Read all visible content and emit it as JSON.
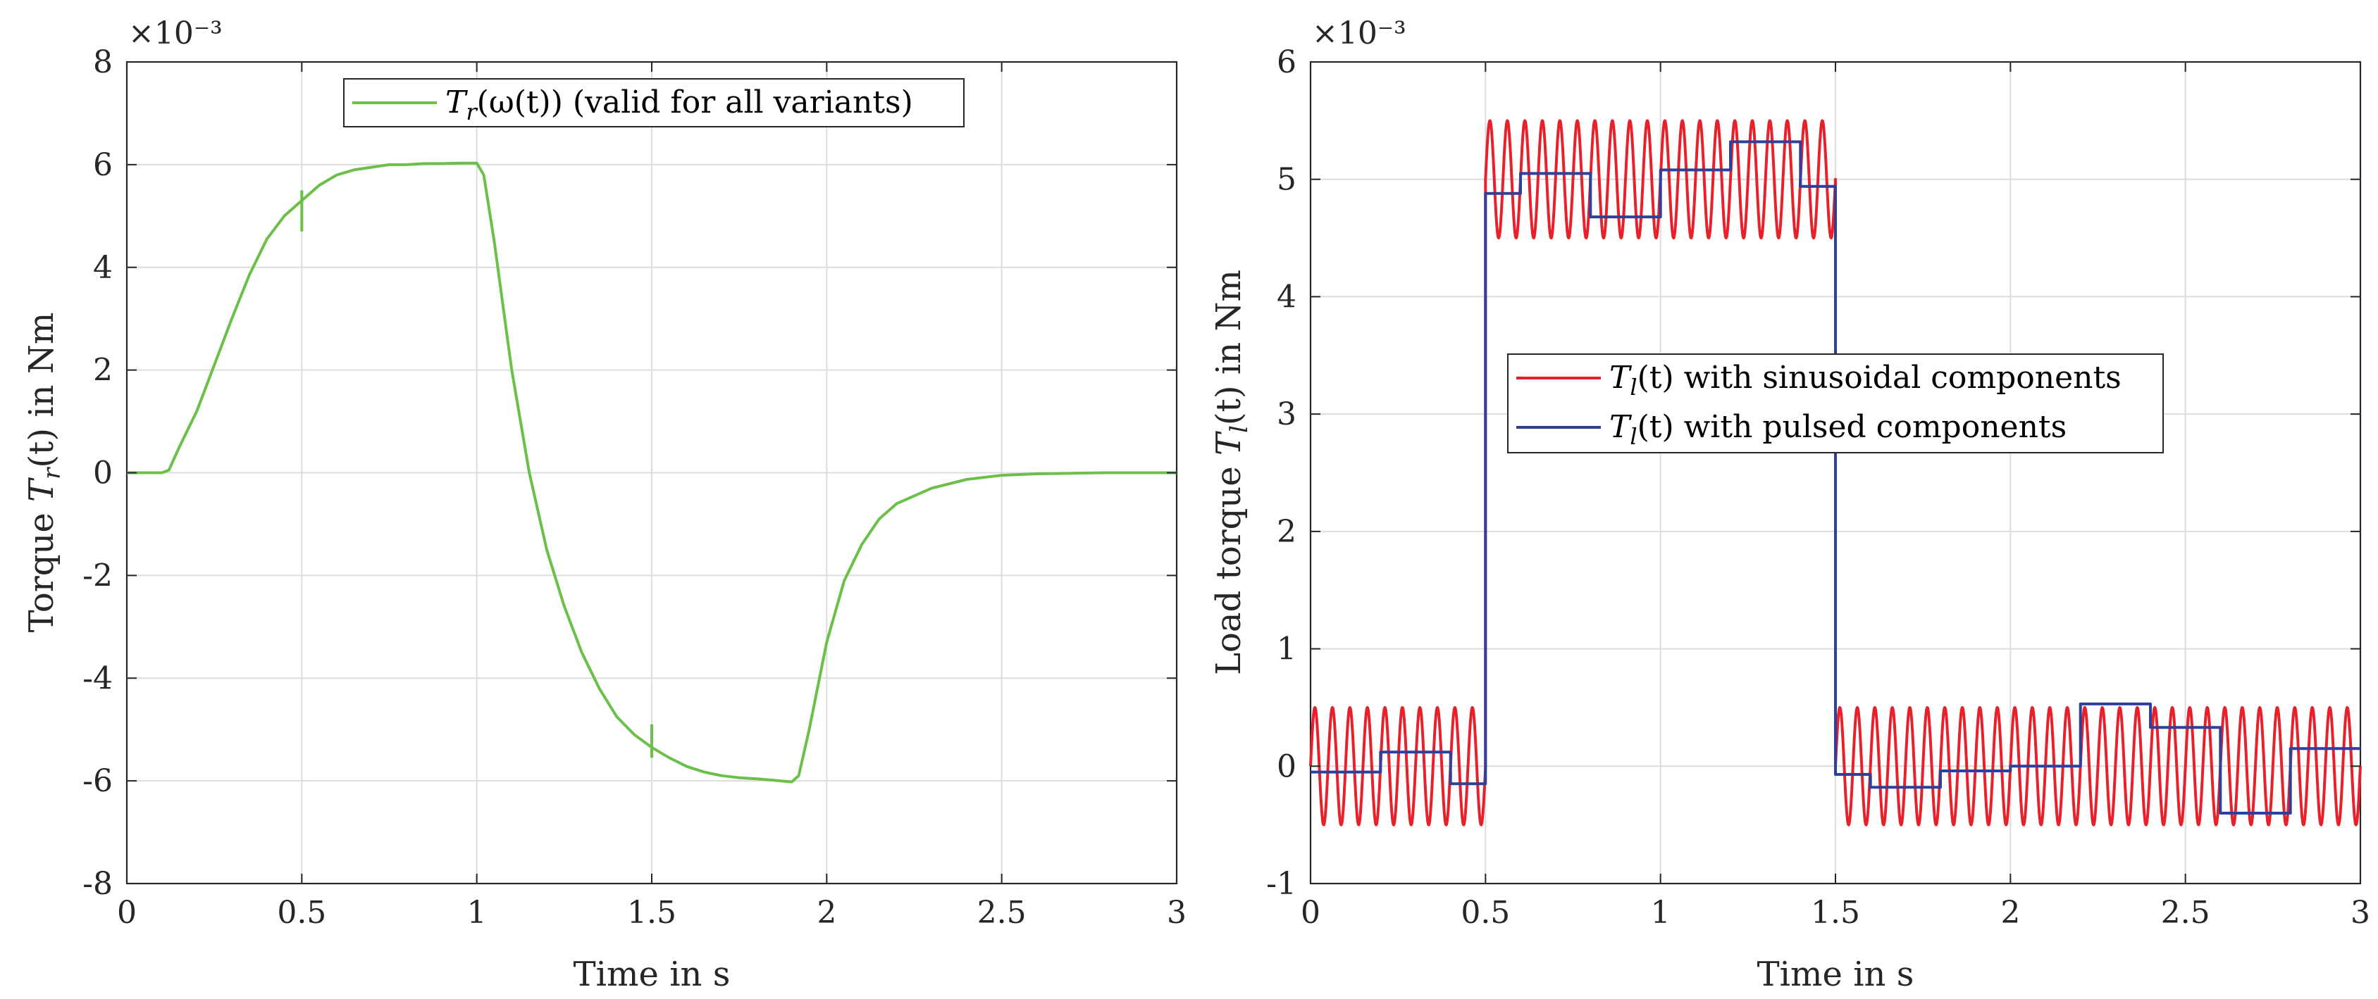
{
  "chart_data": [
    {
      "type": "line",
      "title": "",
      "xlabel": "Time in s",
      "ylabel": "Torque T_r(t) in Nm",
      "ylabel_parts": {
        "pre": "Torque ",
        "sym": "T",
        "sub": "r",
        "post": "(t) in Nm"
      },
      "exponent_label": "×10⁻³",
      "xlim": [
        0,
        3
      ],
      "ylim": [
        -8,
        8
      ],
      "xticks": [
        0,
        0.5,
        1,
        1.5,
        2,
        2.5,
        3
      ],
      "xtick_labels": [
        "0",
        "0.5",
        "1",
        "1.5",
        "2",
        "2.5",
        "3"
      ],
      "yticks": [
        -8,
        -6,
        -4,
        -2,
        0,
        2,
        4,
        6,
        8
      ],
      "ytick_labels": [
        "-8",
        "-6",
        "-4",
        "-2",
        "0",
        "2",
        "4",
        "6",
        "8"
      ],
      "grid": true,
      "legend_position": "top-center",
      "series": [
        {
          "name": "T_r(ω(t)) (valid for all variants)",
          "legend_parts": {
            "sym": "T",
            "sub": "r",
            "post": "(ω(t)) (valid for all variants)"
          },
          "color": "#6cc04a",
          "x": [
            0,
            0.1,
            0.12,
            0.15,
            0.2,
            0.25,
            0.3,
            0.35,
            0.4,
            0.45,
            0.5,
            0.55,
            0.6,
            0.65,
            0.7,
            0.75,
            0.8,
            0.85,
            0.9,
            0.95,
            1.0,
            1.02,
            1.05,
            1.1,
            1.15,
            1.2,
            1.25,
            1.3,
            1.35,
            1.4,
            1.45,
            1.5,
            1.55,
            1.6,
            1.65,
            1.7,
            1.75,
            1.8,
            1.85,
            1.9,
            1.92,
            1.95,
            2.0,
            2.05,
            2.1,
            2.15,
            2.2,
            2.3,
            2.4,
            2.5,
            2.6,
            2.7,
            2.8,
            3.0
          ],
          "y": [
            0,
            0,
            0.05,
            0.5,
            1.2,
            2.1,
            3.0,
            3.85,
            4.55,
            5.0,
            5.3,
            5.6,
            5.8,
            5.9,
            5.95,
            6.0,
            6.0,
            6.02,
            6.02,
            6.03,
            6.03,
            5.8,
            4.5,
            2.0,
            0.0,
            -1.5,
            -2.6,
            -3.5,
            -4.2,
            -4.75,
            -5.1,
            -5.35,
            -5.55,
            -5.72,
            -5.83,
            -5.9,
            -5.94,
            -5.96,
            -5.99,
            -6.02,
            -5.9,
            -5.0,
            -3.3,
            -2.1,
            -1.4,
            -0.9,
            -0.6,
            -0.3,
            -0.13,
            -0.05,
            -0.02,
            -0.01,
            0,
            0
          ]
        }
      ],
      "annotations": [
        {
          "type": "tick",
          "x": 0.5,
          "y_low": 4.7,
          "y_high": 5.5
        },
        {
          "type": "tick",
          "x": 1.5,
          "y_low": -5.55,
          "y_high": -4.9
        }
      ]
    },
    {
      "type": "line",
      "title": "",
      "xlabel": "Time in s",
      "ylabel": "Load torque T_l(t) in Nm",
      "ylabel_parts": {
        "pre": "Load torque ",
        "sym": "T",
        "sub": "l",
        "post": "(t) in Nm"
      },
      "exponent_label": "×10⁻³",
      "xlim": [
        0,
        3
      ],
      "ylim": [
        -1,
        6
      ],
      "xticks": [
        0,
        0.5,
        1,
        1.5,
        2,
        2.5,
        3
      ],
      "xtick_labels": [
        "0",
        "0.5",
        "1",
        "1.5",
        "2",
        "2.5",
        "3"
      ],
      "yticks": [
        -1,
        0,
        1,
        2,
        3,
        4,
        5,
        6
      ],
      "ytick_labels": [
        "-1",
        "0",
        "1",
        "2",
        "3",
        "4",
        "5",
        "6"
      ],
      "grid": true,
      "legend_position": "center",
      "series": [
        {
          "name": "T_l(t) with sinusoidal components",
          "legend_parts": {
            "sym": "T",
            "sub": "l",
            "post": "(t) with sinusoidal components"
          },
          "color": "#e8202a",
          "kind": "sinusoid",
          "frequency_hz": 20,
          "amplitude": 0.5,
          "segments": [
            {
              "t0": 0,
              "t1": 0.5,
              "offset": 0
            },
            {
              "t0": 0.5,
              "t1": 1.5,
              "offset": 5
            },
            {
              "t0": 1.5,
              "t1": 3,
              "offset": 0
            }
          ]
        },
        {
          "name": "T_l(t) with pulsed components",
          "legend_parts": {
            "sym": "T",
            "sub": "l",
            "post": "(t) with pulsed components"
          },
          "color": "#2e3f9c",
          "kind": "step",
          "x": [
            0,
            0.2,
            0.4,
            0.5,
            0.6,
            0.8,
            1.0,
            1.2,
            1.4,
            1.5,
            1.6,
            1.8,
            2.0,
            2.2,
            2.4,
            2.6,
            2.8,
            3.0
          ],
          "y": [
            -0.05,
            0.12,
            -0.15,
            4.88,
            5.05,
            4.68,
            5.08,
            5.32,
            4.94,
            -0.07,
            -0.18,
            -0.04,
            0.0,
            0.53,
            0.33,
            -0.4,
            0.15,
            0.15
          ]
        }
      ]
    }
  ]
}
